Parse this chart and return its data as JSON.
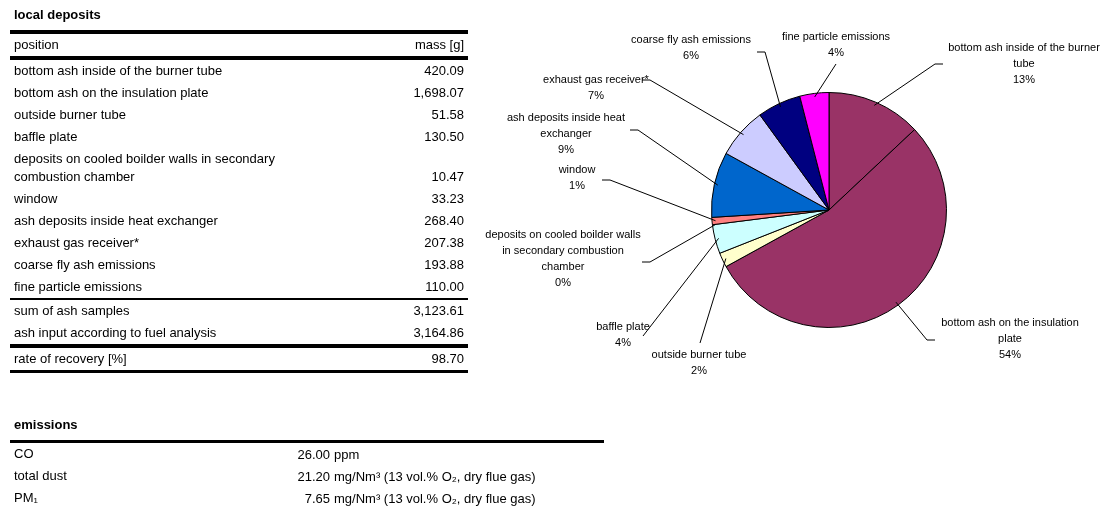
{
  "chart_data": [
    {
      "type": "other",
      "title": "local deposits",
      "xlabel": "position",
      "ylabel": "mass [g]",
      "categories": [
        "bottom ash inside of the burner tube",
        "bottom ash on the insulation plate",
        "outside burner tube",
        "baffle plate",
        "deposits on cooled boilder walls in secondary combustion chamber",
        "window",
        "ash deposits inside heat exchanger",
        "exhaust gas receiver*",
        "coarse fly ash emissions",
        "fine particle emissions",
        "sum of ash samples",
        "ash input according to fuel analysis",
        "rate of recovery [%]"
      ],
      "value_labels": [
        "420.09",
        "1,698.07",
        "51.58",
        "130.50",
        "10.47",
        "33.23",
        "268.40",
        "207.38",
        "193.88",
        "110.00",
        "3,123.61",
        "3,164.86",
        "98.70"
      ]
    },
    {
      "type": "pie",
      "categories": [
        "bottom ash inside of the burner tube",
        "bottom ash on the insulation plate",
        "outside burner tube",
        "baffle plate",
        "deposits on cooled boilder walls in secondary combustion chamber",
        "window",
        "ash deposits inside heat exchanger",
        "exhaust gas receiver*",
        "coarse fly ash emissions",
        "fine particle emissions"
      ],
      "values": [
        13,
        54,
        2,
        4,
        0,
        1,
        9,
        7,
        6,
        4
      ],
      "value_labels": [
        "13%",
        "54%",
        "2%",
        "4%",
        "0%",
        "1%",
        "9%",
        "7%",
        "6%",
        "4%"
      ],
      "colors": [
        "#993366",
        "#993366",
        "#ffffcc",
        "#ccffff",
        "#660066",
        "#ff8080",
        "#0066cc",
        "#ccccff",
        "#000080",
        "#ff00ff"
      ],
      "legend": false
    },
    {
      "type": "other",
      "title": "emissions",
      "categories": [
        "CO",
        "total dust",
        "PM₁"
      ],
      "value_labels": [
        "26.00 ppm",
        "21.20 mg/Nm³ (13 vol.% O₂, dry flue gas)",
        "7.65 mg/Nm³ (13 vol.% O₂, dry flue gas)"
      ]
    }
  ]
}
